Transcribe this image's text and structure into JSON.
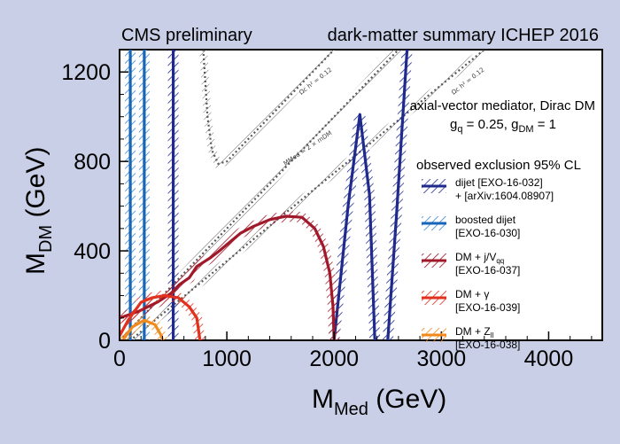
{
  "chart_data": {
    "type": "line",
    "title_left": "CMS preliminary",
    "title_right": "dark-matter summary ICHEP 2016",
    "xlabel": "M",
    "xlabel_sub": "Med",
    "xlabel_unit": " (GeV)",
    "ylabel": "M",
    "ylabel_sub": "DM",
    "ylabel_unit": " (GeV)",
    "xlim": [
      0,
      4500
    ],
    "ylim": [
      0,
      1300
    ],
    "xticks": [
      0,
      1000,
      2000,
      3000,
      4000
    ],
    "yticks": [
      0,
      400,
      800,
      1200
    ],
    "model": "axial-vector mediator, Dirac DM",
    "couplings": {
      "g_q": "g",
      "g_q_sub": "q",
      "g_q_val": " = 0.25, ",
      "g_dm": "g",
      "g_dm_sub": "DM",
      "g_dm_val": " = 1"
    },
    "legend_title": "observed exclusion 95% CL",
    "relic_label": "Ωc h² = 0.12",
    "diagonal_label": "MMed = 2 × mDM",
    "legend": [
      {
        "lines": [
          "dijet [EXO-16-032]",
          "+ [arXiv:1604.08907]"
        ],
        "color": "#1f2a8c"
      },
      {
        "lines": [
          "boosted dijet",
          "[EXO-16-030]"
        ],
        "color": "#1565b8"
      },
      {
        "lines": [
          "DM + j/V",
          "[EXO-16-037]"
        ],
        "sub": "qq",
        "color": "#a0192a"
      },
      {
        "lines": [
          "DM + γ",
          "[EXO-16-039]"
        ],
        "color": "#e0301e"
      },
      {
        "lines": [
          "DM + Z",
          "[EXO-16-038]"
        ],
        "sub": "ll",
        "color": "#f08a1d"
      }
    ],
    "series": [
      {
        "name": "dijet",
        "color": "#1f2a8c",
        "segments": [
          [
            [
              500,
              0
            ],
            [
              500,
              1300
            ]
          ],
          [
            [
              2000,
              0
            ],
            [
              2130,
              600
            ],
            [
              2240,
              1010
            ],
            [
              2330,
              650
            ],
            [
              2380,
              0
            ]
          ],
          [
            [
              2500,
              0
            ],
            [
              2580,
              550
            ],
            [
              2680,
              1300
            ]
          ]
        ]
      },
      {
        "name": "boosted dijet",
        "color": "#1565b8",
        "segments": [
          [
            [
              100,
              0
            ],
            [
              100,
              1300
            ]
          ],
          [
            [
              230,
              0
            ],
            [
              230,
              1300
            ]
          ]
        ]
      },
      {
        "name": "DM + j/V_qq",
        "color": "#a0192a",
        "points": [
          [
            0,
            100
          ],
          [
            180,
            130
          ],
          [
            350,
            170
          ],
          [
            480,
            210
          ],
          [
            560,
            250
          ],
          [
            650,
            280
          ],
          [
            720,
            330
          ],
          [
            850,
            370
          ],
          [
            930,
            400
          ],
          [
            1030,
            440
          ],
          [
            1130,
            480
          ],
          [
            1250,
            510
          ],
          [
            1400,
            540
          ],
          [
            1550,
            555
          ],
          [
            1700,
            550
          ],
          [
            1820,
            500
          ],
          [
            1900,
            420
          ],
          [
            1960,
            300
          ],
          [
            1990,
            150
          ],
          [
            2000,
            0
          ]
        ]
      },
      {
        "name": "DM + γ",
        "color": "#e0301e",
        "points": [
          [
            0,
            20
          ],
          [
            80,
            90
          ],
          [
            200,
            170
          ],
          [
            300,
            190
          ],
          [
            420,
            200
          ],
          [
            550,
            190
          ],
          [
            650,
            150
          ],
          [
            720,
            100
          ],
          [
            750,
            0
          ]
        ]
      },
      {
        "name": "DM + Z_ll",
        "color": "#f08a1d",
        "points": [
          [
            30,
            0
          ],
          [
            120,
            60
          ],
          [
            230,
            90
          ],
          [
            330,
            70
          ],
          [
            390,
            20
          ],
          [
            400,
            0
          ]
        ]
      }
    ],
    "reference_lines": [
      {
        "name": "MMed = 2 × mDM",
        "style": "dotted",
        "points": [
          [
            0,
            0
          ],
          [
            2700,
            1350
          ]
        ]
      },
      {
        "name": "relic-diagonal",
        "style": "dotted",
        "points": [
          [
            0,
            -40
          ],
          [
            3400,
            1300
          ]
        ]
      },
      {
        "name": "relic-u",
        "style": "dotted",
        "points": [
          [
            780,
            1300
          ],
          [
            820,
            1000
          ],
          [
            860,
            850
          ],
          [
            920,
            790
          ],
          [
            1000,
            800
          ],
          [
            1100,
            850
          ],
          [
            1400,
            1000
          ],
          [
            2000,
            1300
          ]
        ]
      }
    ]
  }
}
